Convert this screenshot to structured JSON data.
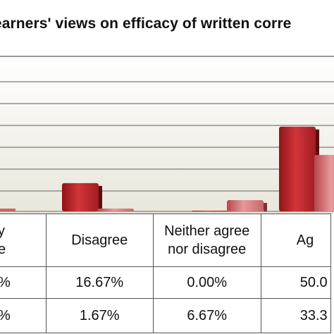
{
  "chart_data": {
    "type": "bar",
    "title": "Learners' views on efficacy of written corre",
    "categories": [
      "y\ne",
      "Disagree",
      "Neither agree nor disagree",
      "Ag"
    ],
    "series": [
      {
        "values": [
          null,
          16.67,
          0.0,
          50.0
        ],
        "color": "#c0272d"
      },
      {
        "values": [
          null,
          1.67,
          6.67,
          33.3
        ],
        "color": "#d8777a"
      }
    ],
    "table": {
      "row1": [
        "%",
        "16.67%",
        "0.00%",
        "50.0"
      ],
      "row2": [
        "%",
        "1.67%",
        "6.67%",
        "33.3"
      ]
    },
    "grid": true,
    "legend": "none"
  }
}
